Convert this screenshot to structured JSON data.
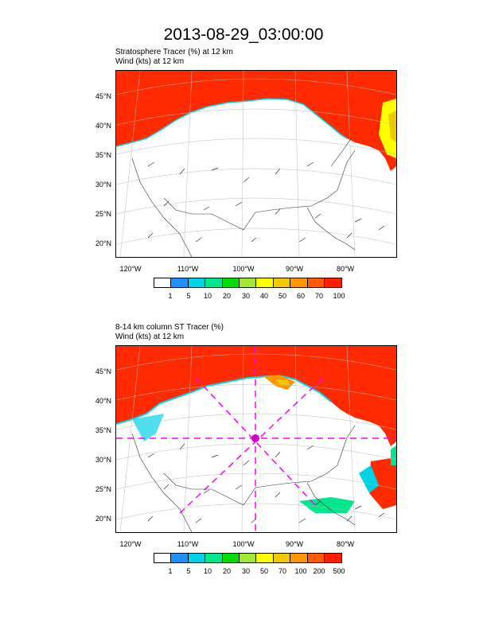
{
  "title": "2013-08-29_03:00:00",
  "panel1": {
    "line1": "Stratosphere Tracer   (%)     at  12 km",
    "line2": "Wind   (kts)     at  12 km",
    "lat_labels": [
      "45°N",
      "40°N",
      "35°N",
      "30°N",
      "25°N",
      "20°N"
    ],
    "lon_labels": [
      "120°W",
      "110°W",
      "100°W",
      "90°W",
      "80°W"
    ],
    "colorbar_labels": [
      "1",
      "5",
      "10",
      "20",
      "30",
      "40",
      "50",
      "60",
      "70",
      "100"
    ]
  },
  "panel2": {
    "line1": "8-14 km column ST Tracer   (%)",
    "line2": "Wind   (kts)     at  12 km",
    "lat_labels": [
      "45°N",
      "40°N",
      "35°N",
      "30°N",
      "25°N",
      "20°N"
    ],
    "lon_labels": [
      "120°W",
      "110°W",
      "100°W",
      "90°W",
      "80°W"
    ],
    "colorbar_labels": [
      "1",
      "5",
      "10",
      "20",
      "30",
      "50",
      "70",
      "100",
      "200",
      "500"
    ]
  },
  "colors": [
    "#ffffff",
    "#1e90ff",
    "#00d2e6",
    "#00e68c",
    "#00dc00",
    "#a0e632",
    "#ffff00",
    "#f0c800",
    "#ff9600",
    "#ff5a00",
    "#ff1e00"
  ]
}
